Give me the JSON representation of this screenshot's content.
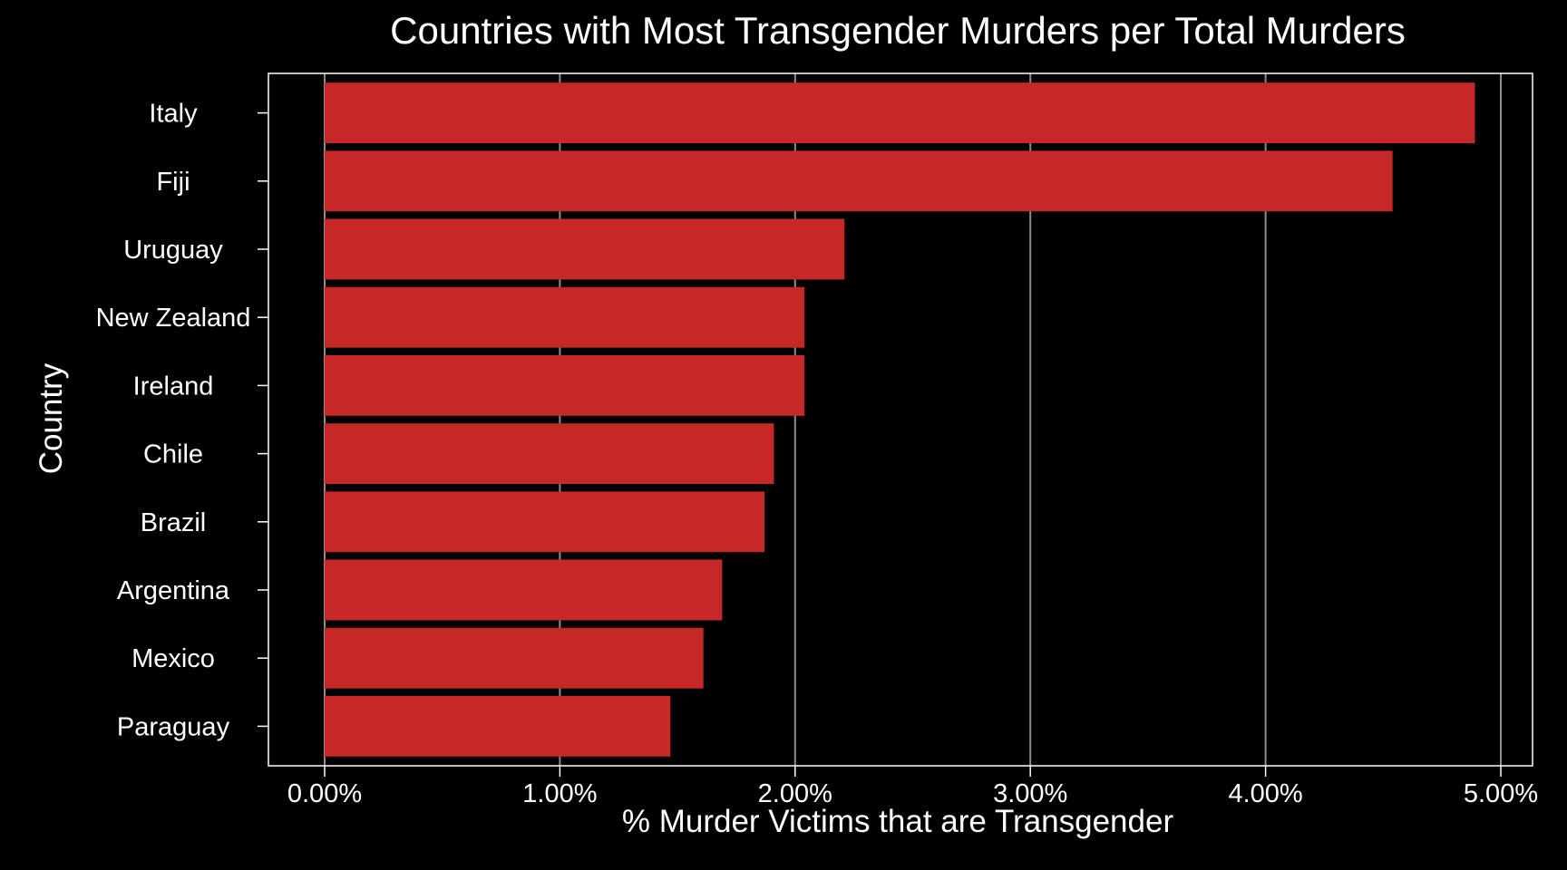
{
  "colors": {
    "background": "#000000",
    "bar": "#c62828",
    "grid": "#8c8c8c",
    "text": "#ffffff",
    "frame": "#ffffff"
  },
  "chart_data": {
    "type": "bar",
    "orientation": "horizontal",
    "title": "Countries with Most Transgender Murders per Total Murders",
    "xlabel": "% Murder Victims that are Transgender",
    "ylabel": "Country",
    "categories": [
      "Italy",
      "Fiji",
      "Uruguay",
      "New Zealand",
      "Ireland",
      "Chile",
      "Brazil",
      "Argentina",
      "Mexico",
      "Paraguay"
    ],
    "values": [
      4.89,
      4.54,
      2.21,
      2.04,
      2.04,
      1.91,
      1.87,
      1.69,
      1.61,
      1.47
    ],
    "value_unit": "%",
    "xlim": [
      0,
      5
    ],
    "xticks": [
      0,
      1,
      2,
      3,
      4,
      5
    ],
    "xtick_labels": [
      "0.00%",
      "1.00%",
      "2.00%",
      "3.00%",
      "4.00%",
      "5.00%"
    ],
    "grid": "vertical",
    "legend": "none"
  }
}
